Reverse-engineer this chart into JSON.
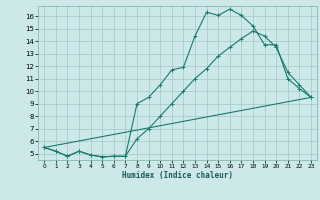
{
  "title": "",
  "xlabel": "Humidex (Indice chaleur)",
  "bg_color": "#cce8e8",
  "grid_color": "#aacccc",
  "line_color": "#1a7a6e",
  "xlim": [
    -0.5,
    23.5
  ],
  "ylim": [
    4.5,
    16.8
  ],
  "yticks": [
    5,
    6,
    7,
    8,
    9,
    10,
    11,
    12,
    13,
    14,
    15,
    16
  ],
  "xticks": [
    0,
    1,
    2,
    3,
    4,
    5,
    6,
    7,
    8,
    9,
    10,
    11,
    12,
    13,
    14,
    15,
    16,
    17,
    18,
    19,
    20,
    21,
    22,
    23
  ],
  "line1_x": [
    0,
    1,
    2,
    3,
    4,
    5,
    6,
    7,
    8,
    9,
    10,
    11,
    12,
    13,
    14,
    15,
    16,
    17,
    18,
    19,
    20,
    21,
    22,
    23
  ],
  "line1_y": [
    5.5,
    5.2,
    4.8,
    5.2,
    4.9,
    4.75,
    4.8,
    4.8,
    9.0,
    9.5,
    10.5,
    11.7,
    11.9,
    14.4,
    16.3,
    16.05,
    16.55,
    16.05,
    15.2,
    13.7,
    13.7,
    11.0,
    10.2,
    9.5
  ],
  "line2_x": [
    0,
    1,
    2,
    3,
    4,
    5,
    6,
    7,
    8,
    9,
    10,
    11,
    12,
    13,
    14,
    15,
    16,
    17,
    18,
    19,
    20,
    21,
    22,
    23
  ],
  "line2_y": [
    5.5,
    5.2,
    4.8,
    5.2,
    4.9,
    4.75,
    4.8,
    4.8,
    6.2,
    7.0,
    8.0,
    9.0,
    10.0,
    11.0,
    11.8,
    12.8,
    13.5,
    14.2,
    14.8,
    14.4,
    13.5,
    11.5,
    10.5,
    9.5
  ],
  "line3_x": [
    0,
    23
  ],
  "line3_y": [
    5.5,
    9.5
  ]
}
